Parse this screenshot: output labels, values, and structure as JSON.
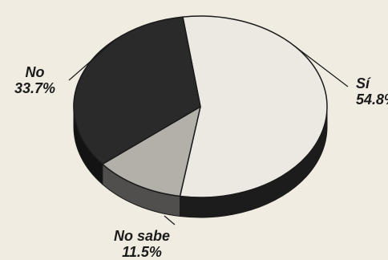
{
  "chart_data": {
    "type": "pie",
    "style": "3d",
    "slices": [
      {
        "label": "Sí",
        "value": 54.8,
        "value_label": "54.8%",
        "color": "#ece9e2"
      },
      {
        "label": "No sabe",
        "value": 11.5,
        "value_label": "11.5%",
        "color": "#b3b0aa"
      },
      {
        "label": "No",
        "value": 33.7,
        "value_label": "33.7%",
        "color": "#2a2a2a"
      }
    ]
  }
}
